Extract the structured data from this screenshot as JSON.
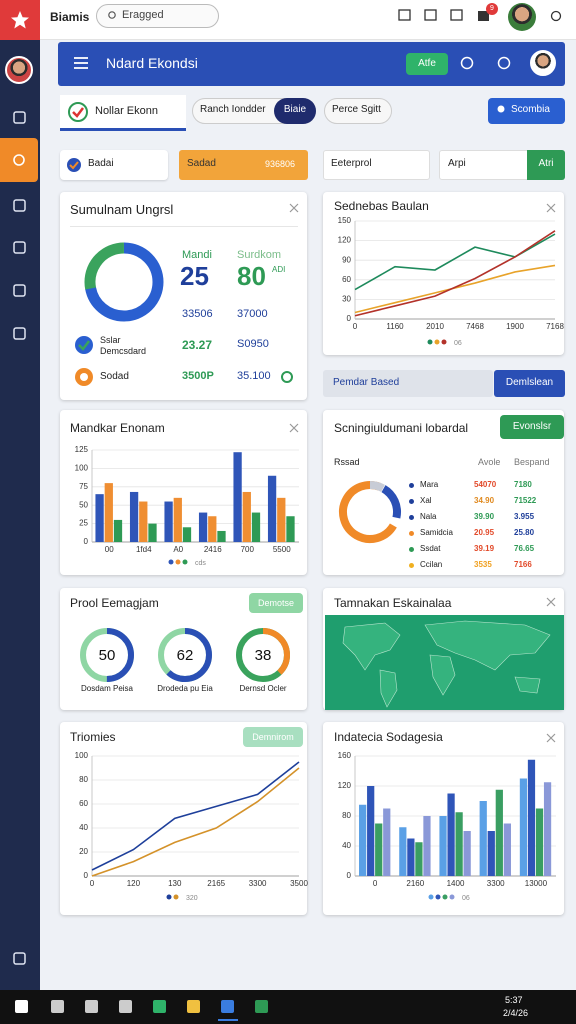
{
  "top_bar": {
    "app_name": "Biamis",
    "search": "Eragged",
    "notification_count": 9
  },
  "header": {
    "title": "Ndard Ekondsi",
    "button": "Atfe"
  },
  "tabs": [
    "Nollar Ekonn",
    "Ranch Iondder",
    "Biaie",
    "Perce Sgitt"
  ],
  "action_button": "Scombia",
  "filters": {
    "badge": "Badai",
    "progress_label": "Sadad",
    "progress_value": "936806",
    "input_1": "Eeterprol",
    "input_2": "Arpi",
    "input_2_button": "Atri"
  },
  "summary_card": {
    "title": "Sumulnam Ungrsl",
    "stats": [
      {
        "label": "Mandi",
        "value": "25"
      },
      {
        "label": "Surdkom",
        "value": "80",
        "unit": "ADI"
      }
    ],
    "row_1": [
      "33506",
      "37000"
    ],
    "items": [
      {
        "label": [
          "Sslar",
          "Demcsdard"
        ],
        "values": [
          "23.27",
          "S0950"
        ]
      },
      {
        "label": [
          "Sodad"
        ],
        "values": [
          "3500P",
          "35.100"
        ]
      }
    ]
  },
  "band": {
    "label": "Pemdar Based",
    "button": "Demlslean"
  },
  "table_card": {
    "title": "Scningiuldumani lobardal",
    "button": "Evonslsr",
    "headers": [
      "Rssad",
      "Avole",
      "Bespand"
    ],
    "rows": [
      [
        "Mara",
        "54070",
        "7180"
      ],
      [
        "Xal",
        "34.90",
        "71522"
      ],
      [
        "Nala",
        "39.90",
        "3.955"
      ],
      [
        "Samidcia",
        "20.95",
        "25.80"
      ],
      [
        "Ssdat",
        "39.19",
        "76.65"
      ],
      [
        "Ccilan",
        "3535",
        "7166"
      ]
    ]
  },
  "gauge_card": {
    "title": "Prool Eemagjam",
    "button": "Demotse",
    "gauges": [
      {
        "value": 50,
        "label": "Dosdam Peisa"
      },
      {
        "value": 62,
        "label": "Drodeda pu Eia"
      },
      {
        "value": 38,
        "label": "Dernsd Ocler"
      }
    ]
  },
  "map_card": {
    "title": "Tamnakan Eskainalaa"
  },
  "taskbar": {
    "time": "5:37",
    "date": "2/4/26"
  },
  "chart_data": [
    {
      "type": "line",
      "title": "Sednebas Baulan",
      "legend_note": "06",
      "categories": [
        "0",
        "1160",
        "2010",
        "7468",
        "1900",
        "7168"
      ],
      "ylim": [
        0,
        150
      ],
      "yticks": [
        0,
        30,
        60,
        90,
        120,
        150
      ],
      "grid": true,
      "series": [
        {
          "color": "#1e8a5c",
          "values": [
            45,
            80,
            75,
            110,
            95,
            130
          ]
        },
        {
          "color": "#e8a32a",
          "values": [
            10,
            25,
            40,
            55,
            72,
            82
          ]
        },
        {
          "color": "#b3322a",
          "values": [
            5,
            20,
            35,
            62,
            95,
            135
          ]
        }
      ]
    },
    {
      "type": "bar",
      "title": "Mandkar Enonam",
      "legend_note": "cds",
      "categories": [
        "00",
        "1fd4",
        "A0",
        "2416",
        "700",
        "5500"
      ],
      "ylim": [
        0,
        125
      ],
      "yticks": [
        0,
        25,
        50,
        75,
        100,
        125
      ],
      "grid": true,
      "series": [
        {
          "color": "#2f55b8",
          "values": [
            65,
            68,
            55,
            40,
            122,
            90
          ]
        },
        {
          "color": "#ef8e32",
          "values": [
            80,
            55,
            60,
            35,
            68,
            60
          ]
        },
        {
          "color": "#2e9a55",
          "values": [
            30,
            25,
            20,
            15,
            40,
            35
          ]
        }
      ]
    },
    {
      "type": "line",
      "title": "Triomies",
      "button": "Demnirom",
      "legend_note": "320",
      "categories": [
        "0",
        "120",
        "130",
        "2165",
        "3300",
        "3500"
      ],
      "ylim": [
        0,
        100
      ],
      "yticks": [
        0,
        20,
        40,
        60,
        80,
        100
      ],
      "grid": true,
      "series": [
        {
          "color": "#1e3f9a",
          "values": [
            5,
            22,
            48,
            58,
            68,
            95
          ]
        },
        {
          "color": "#d4922a",
          "values": [
            0,
            12,
            28,
            40,
            62,
            90
          ]
        }
      ]
    },
    {
      "type": "bar",
      "title": "Indatecia Sodagesia",
      "legend_note": "06",
      "categories": [
        "0",
        "2160",
        "1400",
        "3300",
        "13000"
      ],
      "ylim": [
        0,
        160
      ],
      "yticks": [
        0,
        40,
        80,
        120,
        160
      ],
      "grid": true,
      "series": [
        {
          "color": "#5aa0e6",
          "values": [
            95,
            65,
            80,
            100,
            130
          ]
        },
        {
          "color": "#2f55b8",
          "values": [
            120,
            50,
            110,
            60,
            155
          ]
        },
        {
          "color": "#3a9e62",
          "values": [
            70,
            45,
            85,
            115,
            90
          ]
        },
        {
          "color": "#8a98d8",
          "values": [
            90,
            80,
            60,
            70,
            125
          ]
        }
      ]
    }
  ]
}
